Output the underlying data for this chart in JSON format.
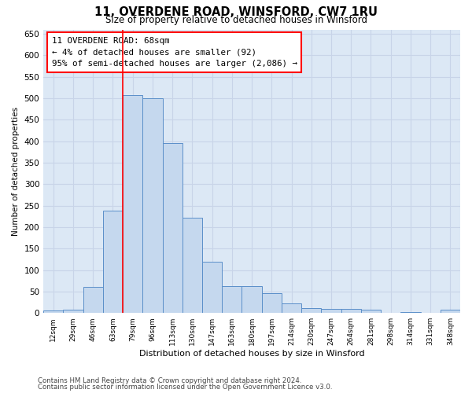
{
  "title": "11, OVERDENE ROAD, WINSFORD, CW7 1RU",
  "subtitle": "Size of property relative to detached houses in Winsford",
  "xlabel": "Distribution of detached houses by size in Winsford",
  "ylabel": "Number of detached properties",
  "footer_line1": "Contains HM Land Registry data © Crown copyright and database right 2024.",
  "footer_line2": "Contains public sector information licensed under the Open Government Licence v3.0.",
  "annotation_title": "11 OVERDENE ROAD: 68sqm",
  "annotation_line2": "← 4% of detached houses are smaller (92)",
  "annotation_line3": "95% of semi-detached houses are larger (2,086) →",
  "bin_labels": [
    "12sqm",
    "29sqm",
    "46sqm",
    "63sqm",
    "79sqm",
    "96sqm",
    "113sqm",
    "130sqm",
    "147sqm",
    "163sqm",
    "180sqm",
    "197sqm",
    "214sqm",
    "230sqm",
    "247sqm",
    "264sqm",
    "281sqm",
    "298sqm",
    "314sqm",
    "331sqm",
    "348sqm"
  ],
  "bar_heights": [
    5,
    8,
    60,
    238,
    507,
    500,
    395,
    222,
    120,
    63,
    63,
    47,
    22,
    12,
    10,
    9,
    7,
    0,
    3,
    0,
    7
  ],
  "bar_color": "#c5d8ee",
  "bar_edge_color": "#5b8fc9",
  "property_line_x": 3.5,
  "ylim": [
    0,
    660
  ],
  "yticks": [
    0,
    50,
    100,
    150,
    200,
    250,
    300,
    350,
    400,
    450,
    500,
    550,
    600,
    650
  ],
  "grid_color": "#c8d4e8",
  "background_color": "#dce8f5"
}
